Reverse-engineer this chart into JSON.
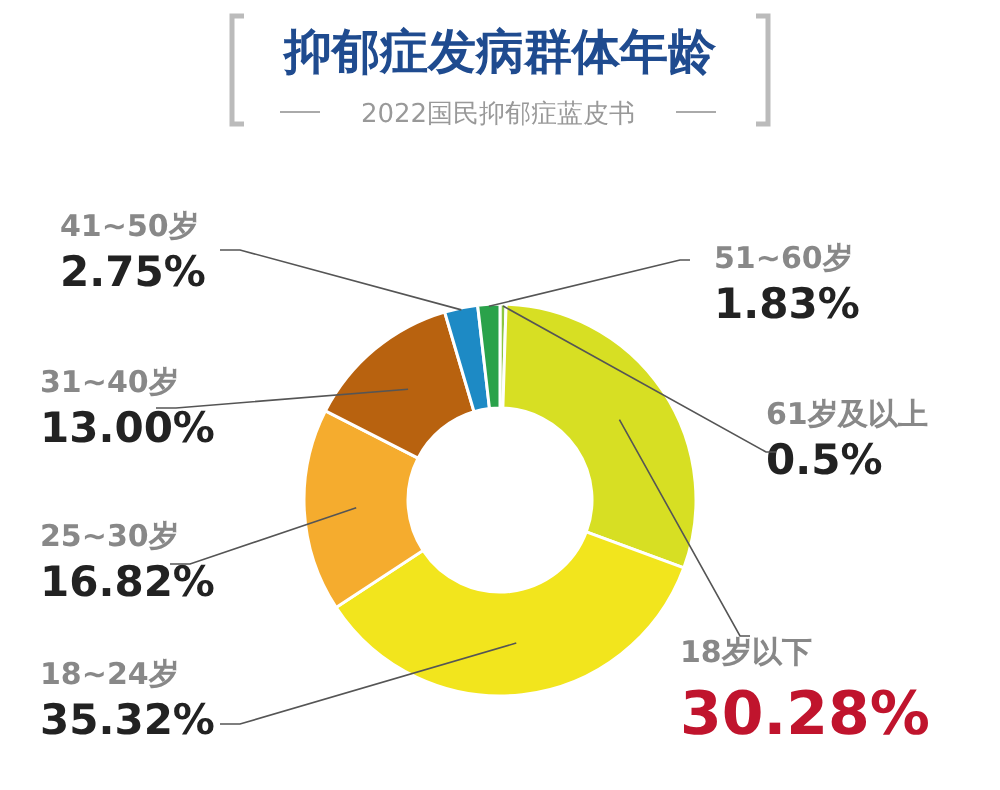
{
  "chart_data": {
    "type": "donut",
    "title": "抑郁症发病群体年龄",
    "subtitle": "2022国民抑郁症蓝皮书",
    "categories": [
      "61岁及以上",
      "18岁以下",
      "18~24岁",
      "25~30岁",
      "31~40岁",
      "41~50岁",
      "51~60岁"
    ],
    "values": [
      0.5,
      30.28,
      35.32,
      16.82,
      13.0,
      2.75,
      1.83
    ],
    "value_labels": [
      "0.5%",
      "30.28%",
      "35.32%",
      "16.82%",
      "13.00%",
      "2.75%",
      "1.83%"
    ],
    "colors": [
      "#8cc63f",
      "#d7df23",
      "#f2e51d",
      "#f5ac2e",
      "#b8620f",
      "#1d8ac5",
      "#2aa24a"
    ]
  }
}
